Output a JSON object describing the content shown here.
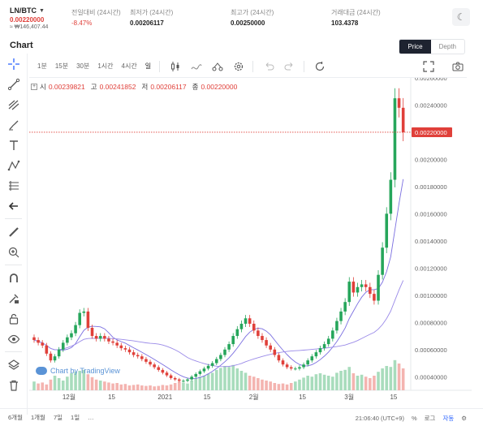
{
  "ticker": {
    "pair": "LN/BTC",
    "price": "0.00220000",
    "krw": "≈ ₩146,407.44"
  },
  "stats": [
    {
      "label": "전일대비 (24시간)",
      "value": "-8.47%",
      "negative": true
    },
    {
      "label": "최저가 (24시간)",
      "value": "0.00206117",
      "negative": false
    },
    {
      "label": "최고가 (24시간)",
      "value": "0.00250000",
      "negative": false
    },
    {
      "label": "거래대금 (24시간)",
      "value": "103.4378",
      "negative": false
    }
  ],
  "section_title": "Chart",
  "view_tabs": {
    "price": "Price",
    "depth": "Depth"
  },
  "intervals": [
    "1분",
    "15분",
    "30분",
    "1시간",
    "4시간",
    "일"
  ],
  "legend": {
    "open_label": "시",
    "open": "0.00239821",
    "high_label": "고",
    "high": "0.00241852",
    "low_label": "저",
    "low": "0.00206117",
    "close_label": "종",
    "close": "0.00220000"
  },
  "watermark": "Chart by TradingView",
  "ranges": [
    "6개월",
    "1개월",
    "7일",
    "1일",
    "…"
  ],
  "bottom_right": {
    "time": "21:06:40 (UTC+9)",
    "pct": "%",
    "log": "로그",
    "auto": "자동"
  },
  "colors": {
    "up": "#26a65b",
    "down": "#e0403a",
    "ma_fast": "#7b6fe0",
    "ma_slow": "#9a8ae8",
    "accent": "#2962ff"
  },
  "chart_data": {
    "type": "candlestick",
    "x_tick_labels": [
      "12월",
      "15",
      "2021",
      "15",
      "2월",
      "15",
      "3월",
      "15"
    ],
    "y_tick_labels": [
      "0.00260000",
      "0.00240000",
      "0.00220000",
      "0.00200000",
      "0.00180000",
      "0.00160000",
      "0.00140000",
      "0.00120000",
      "0.00100000",
      "0.00080000",
      "0.00060000",
      "0.00040000"
    ],
    "ylim": [
      0.0003,
      0.0026
    ],
    "last_price": 0.0022,
    "last_price_label": "0.00220000",
    "closes": [
      0.00067,
      0.00065,
      0.00063,
      0.00057,
      0.00052,
      0.00055,
      0.0006,
      0.00065,
      0.00069,
      0.00072,
      0.00078,
      0.00087,
      0.00088,
      0.00076,
      0.0007,
      0.00068,
      0.0007,
      0.00068,
      0.00066,
      0.00065,
      0.00063,
      0.00061,
      0.0006,
      0.00058,
      0.00056,
      0.00055,
      0.00053,
      0.00051,
      0.00049,
      0.00047,
      0.00045,
      0.00043,
      0.00041,
      0.00039,
      0.00038,
      0.00037,
      0.00037,
      0.00038,
      0.0004,
      0.00042,
      0.00044,
      0.00046,
      0.00048,
      0.0005,
      0.00053,
      0.00056,
      0.0006,
      0.00064,
      0.0007,
      0.00075,
      0.00079,
      0.00083,
      0.00079,
      0.00074,
      0.0007,
      0.00067,
      0.00063,
      0.0006,
      0.00056,
      0.00052,
      0.00049,
      0.00047,
      0.00046,
      0.00046,
      0.00047,
      0.00049,
      0.00052,
      0.00055,
      0.00058,
      0.00061,
      0.00064,
      0.00068,
      0.00074,
      0.00081,
      0.00088,
      0.00095,
      0.0011,
      0.00102,
      0.00106,
      0.00108,
      0.00106,
      0.00101,
      0.00096,
      0.00115,
      0.00135,
      0.0016,
      0.00185,
      0.00245,
      0.00238,
      0.0022
    ],
    "volumes": [
      0.18,
      0.14,
      0.16,
      0.12,
      0.22,
      0.3,
      0.25,
      0.2,
      0.28,
      0.35,
      0.38,
      0.4,
      0.42,
      0.33,
      0.27,
      0.22,
      0.2,
      0.18,
      0.16,
      0.14,
      0.15,
      0.12,
      0.13,
      0.1,
      0.11,
      0.12,
      0.1,
      0.09,
      0.1,
      0.08,
      0.09,
      0.11,
      0.1,
      0.12,
      0.15,
      0.18,
      0.16,
      0.14,
      0.2,
      0.24,
      0.28,
      0.3,
      0.34,
      0.36,
      0.42,
      0.46,
      0.5,
      0.48,
      0.52,
      0.45,
      0.4,
      0.36,
      0.3,
      0.28,
      0.25,
      0.22,
      0.2,
      0.18,
      0.15,
      0.13,
      0.14,
      0.12,
      0.15,
      0.18,
      0.22,
      0.26,
      0.3,
      0.28,
      0.33,
      0.35,
      0.32,
      0.3,
      0.28,
      0.36,
      0.4,
      0.42,
      0.48,
      0.35,
      0.3,
      0.32,
      0.28,
      0.25,
      0.3,
      0.38,
      0.45,
      0.5,
      0.48,
      0.62,
      0.55,
      0.45
    ]
  }
}
